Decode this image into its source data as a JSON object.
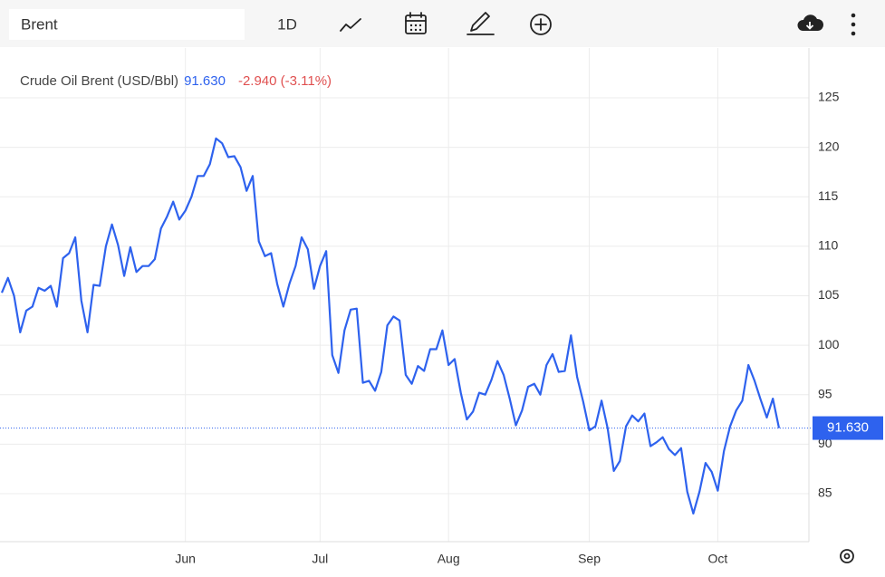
{
  "toolbar": {
    "symbol": "Brent",
    "interval": "1D"
  },
  "chart_data": {
    "type": "line",
    "title": "Crude Oil Brent (USD/Bbl)",
    "last": {
      "value": 91.63,
      "label": "91.630"
    },
    "change": "-2.940 (-3.11%)",
    "categories": [
      null,
      null,
      null,
      null,
      null,
      null,
      null,
      null,
      null,
      null,
      null,
      null,
      null,
      null,
      null,
      null,
      null,
      null,
      null,
      null,
      null,
      null,
      null,
      null,
      null,
      null,
      null,
      null,
      null,
      null,
      "Jun",
      null,
      null,
      null,
      null,
      null,
      null,
      null,
      null,
      null,
      null,
      null,
      null,
      null,
      null,
      null,
      null,
      null,
      null,
      null,
      null,
      null,
      "Jul",
      null,
      null,
      null,
      null,
      null,
      null,
      null,
      null,
      null,
      null,
      null,
      null,
      null,
      null,
      null,
      null,
      null,
      null,
      null,
      null,
      "Aug",
      null,
      null,
      null,
      null,
      null,
      null,
      null,
      null,
      null,
      null,
      null,
      null,
      null,
      null,
      null,
      null,
      null,
      null,
      null,
      null,
      null,
      null,
      "Sep",
      null,
      null,
      null,
      null,
      null,
      null,
      null,
      null,
      null,
      null,
      null,
      null,
      null,
      null,
      null,
      null,
      null,
      null,
      null,
      null,
      "Oct",
      null,
      null,
      null,
      null,
      null,
      null,
      null,
      null,
      null,
      null
    ],
    "series": [
      {
        "name": "Brent",
        "color": "#2e62ee",
        "values": [
          105.3,
          106.8,
          105,
          101.3,
          103.5,
          103.9,
          105.8,
          105.5,
          106,
          103.9,
          108.8,
          109.3,
          110.9,
          104.5,
          101.3,
          106.1,
          106,
          110,
          112.2,
          110.1,
          107,
          109.9,
          107.4,
          108,
          108,
          108.7,
          111.8,
          113,
          114.5,
          112.7,
          113.6,
          115,
          117.1,
          117.1,
          118.3,
          120.9,
          120.4,
          119,
          119.1,
          118,
          115.6,
          117.1,
          110.5,
          109,
          109.3,
          106.2,
          103.9,
          106.2,
          108,
          110.9,
          109.7,
          105.7,
          108,
          109.5,
          99,
          97.2,
          101.5,
          103.6,
          103.7,
          96.2,
          96.4,
          95.4,
          97.3,
          102,
          102.9,
          102.5,
          97,
          96.1,
          97.9,
          97.4,
          99.6,
          99.6,
          101.5,
          98,
          98.6,
          95.2,
          92.5,
          93.3,
          95.2,
          95,
          96.5,
          98.4,
          97,
          94.6,
          91.9,
          93.4,
          95.8,
          96.1,
          95,
          98,
          99.1,
          97.3,
          97.4,
          101,
          96.8,
          94.3,
          91.4,
          91.8,
          94.4,
          91.6,
          87.3,
          88.3,
          91.8,
          92.9,
          92.3,
          93.1,
          89.8,
          90.2,
          90.7,
          89.5,
          88.9,
          89.6,
          85.2,
          83,
          85.2,
          88.1,
          87.2,
          85.3,
          89.3,
          91.8,
          93.4,
          94.4,
          98,
          96.4,
          94.5,
          92.7,
          94.6,
          91.63
        ]
      }
    ],
    "ylim": [
      80.15,
      130.03
    ],
    "yticks": [
      85,
      90,
      95,
      100,
      105,
      110,
      115,
      120,
      125
    ],
    "grid": true
  }
}
